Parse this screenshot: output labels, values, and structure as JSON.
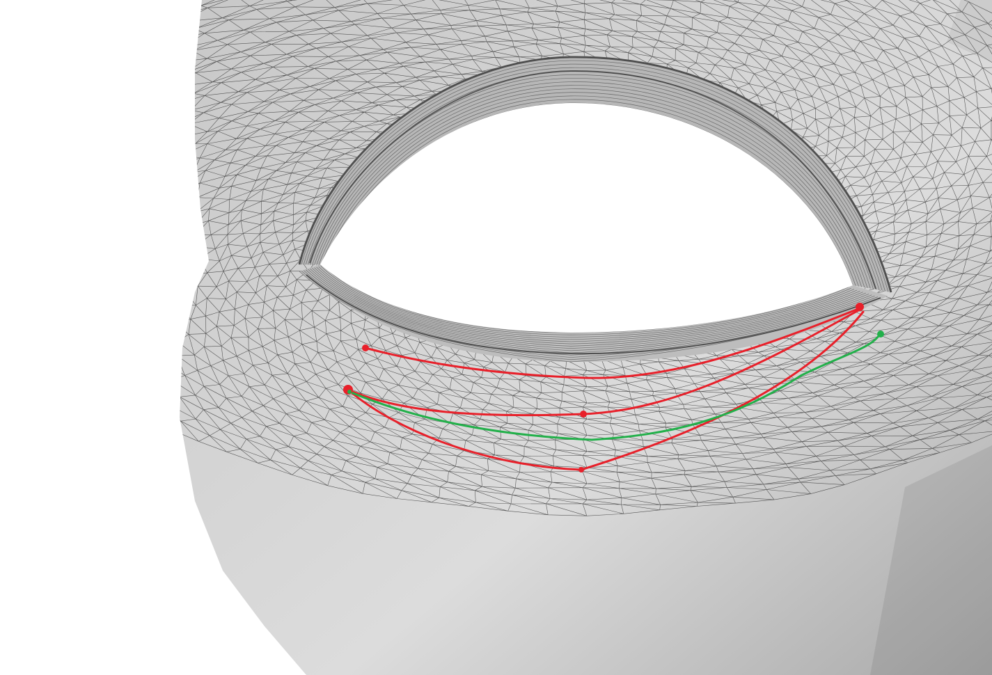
{
  "scene": {
    "background_color": "#ffffff",
    "mesh_fill_color": "#c8c8c8",
    "mesh_shadow_color": "#a9a9a9",
    "mesh_highlight_color": "#dcdcdc",
    "wire_color": "#2a2a2a",
    "eyelid_groove_color": "#5a5a5a",
    "curve_primary_color": "#e8202a",
    "curve_secondary_color": "#22b04a"
  },
  "overlays": {
    "red_curves": 3,
    "green_curves": 1,
    "control_points": 7
  }
}
